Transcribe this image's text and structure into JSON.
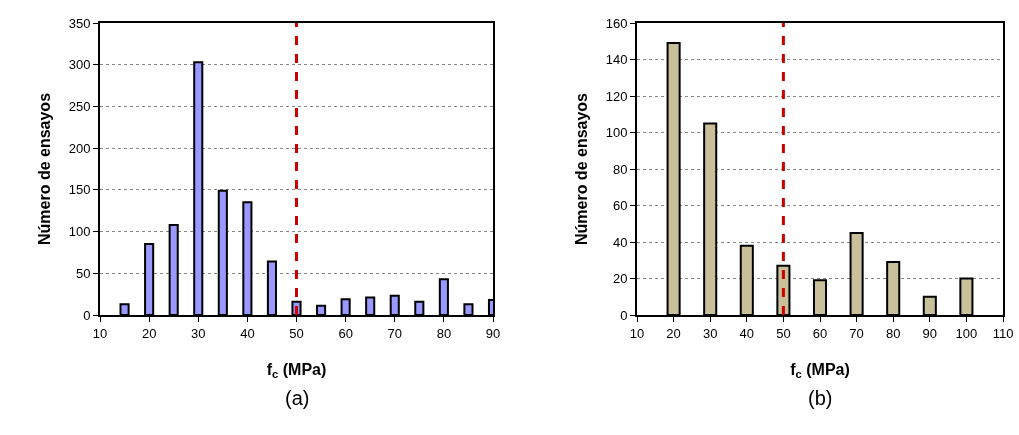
{
  "chart_data": [
    {
      "type": "bar",
      "x": [
        15,
        20,
        25,
        30,
        35,
        40,
        45,
        50,
        55,
        60,
        65,
        70,
        75,
        80,
        85,
        90
      ],
      "values": [
        13,
        85,
        108,
        303,
        149,
        135,
        64,
        16,
        11,
        19,
        21,
        23,
        16,
        43,
        13,
        18
      ],
      "color": "#9999ff",
      "xlabel": "f$_{c}$ (MPa)",
      "ylabel": "Número de ensayos",
      "xlim": [
        10,
        90
      ],
      "xticks": [
        10,
        20,
        30,
        40,
        50,
        60,
        70,
        80,
        90
      ],
      "ylim": [
        0,
        350
      ],
      "yticks": [
        0,
        50,
        100,
        150,
        200,
        250,
        300,
        350
      ],
      "grid": "y",
      "ref_lines": [
        {
          "axis": "x",
          "value": 50,
          "color": "#cc0000",
          "line_style": "dashed"
        }
      ],
      "annotations": [
        "(a)"
      ]
    },
    {
      "type": "bar",
      "x": [
        20,
        30,
        40,
        50,
        60,
        70,
        80,
        90,
        100
      ],
      "values": [
        149,
        105,
        38,
        27,
        19,
        45,
        29,
        10,
        20
      ],
      "color": "#c8bf9b",
      "xlabel": "f$_{c}$ (MPa)",
      "ylabel": "Número de ensayos",
      "xlim": [
        10,
        110
      ],
      "xticks": [
        10,
        20,
        30,
        40,
        50,
        60,
        70,
        80,
        90,
        100,
        110
      ],
      "ylim": [
        0,
        160
      ],
      "yticks": [
        0,
        20,
        40,
        60,
        80,
        100,
        120,
        140,
        160
      ],
      "grid": "y",
      "ref_lines": [
        {
          "axis": "x",
          "value": 50,
          "color": "#cc0000",
          "line_style": "dashed"
        }
      ],
      "annotations": [
        "(b)"
      ]
    }
  ]
}
